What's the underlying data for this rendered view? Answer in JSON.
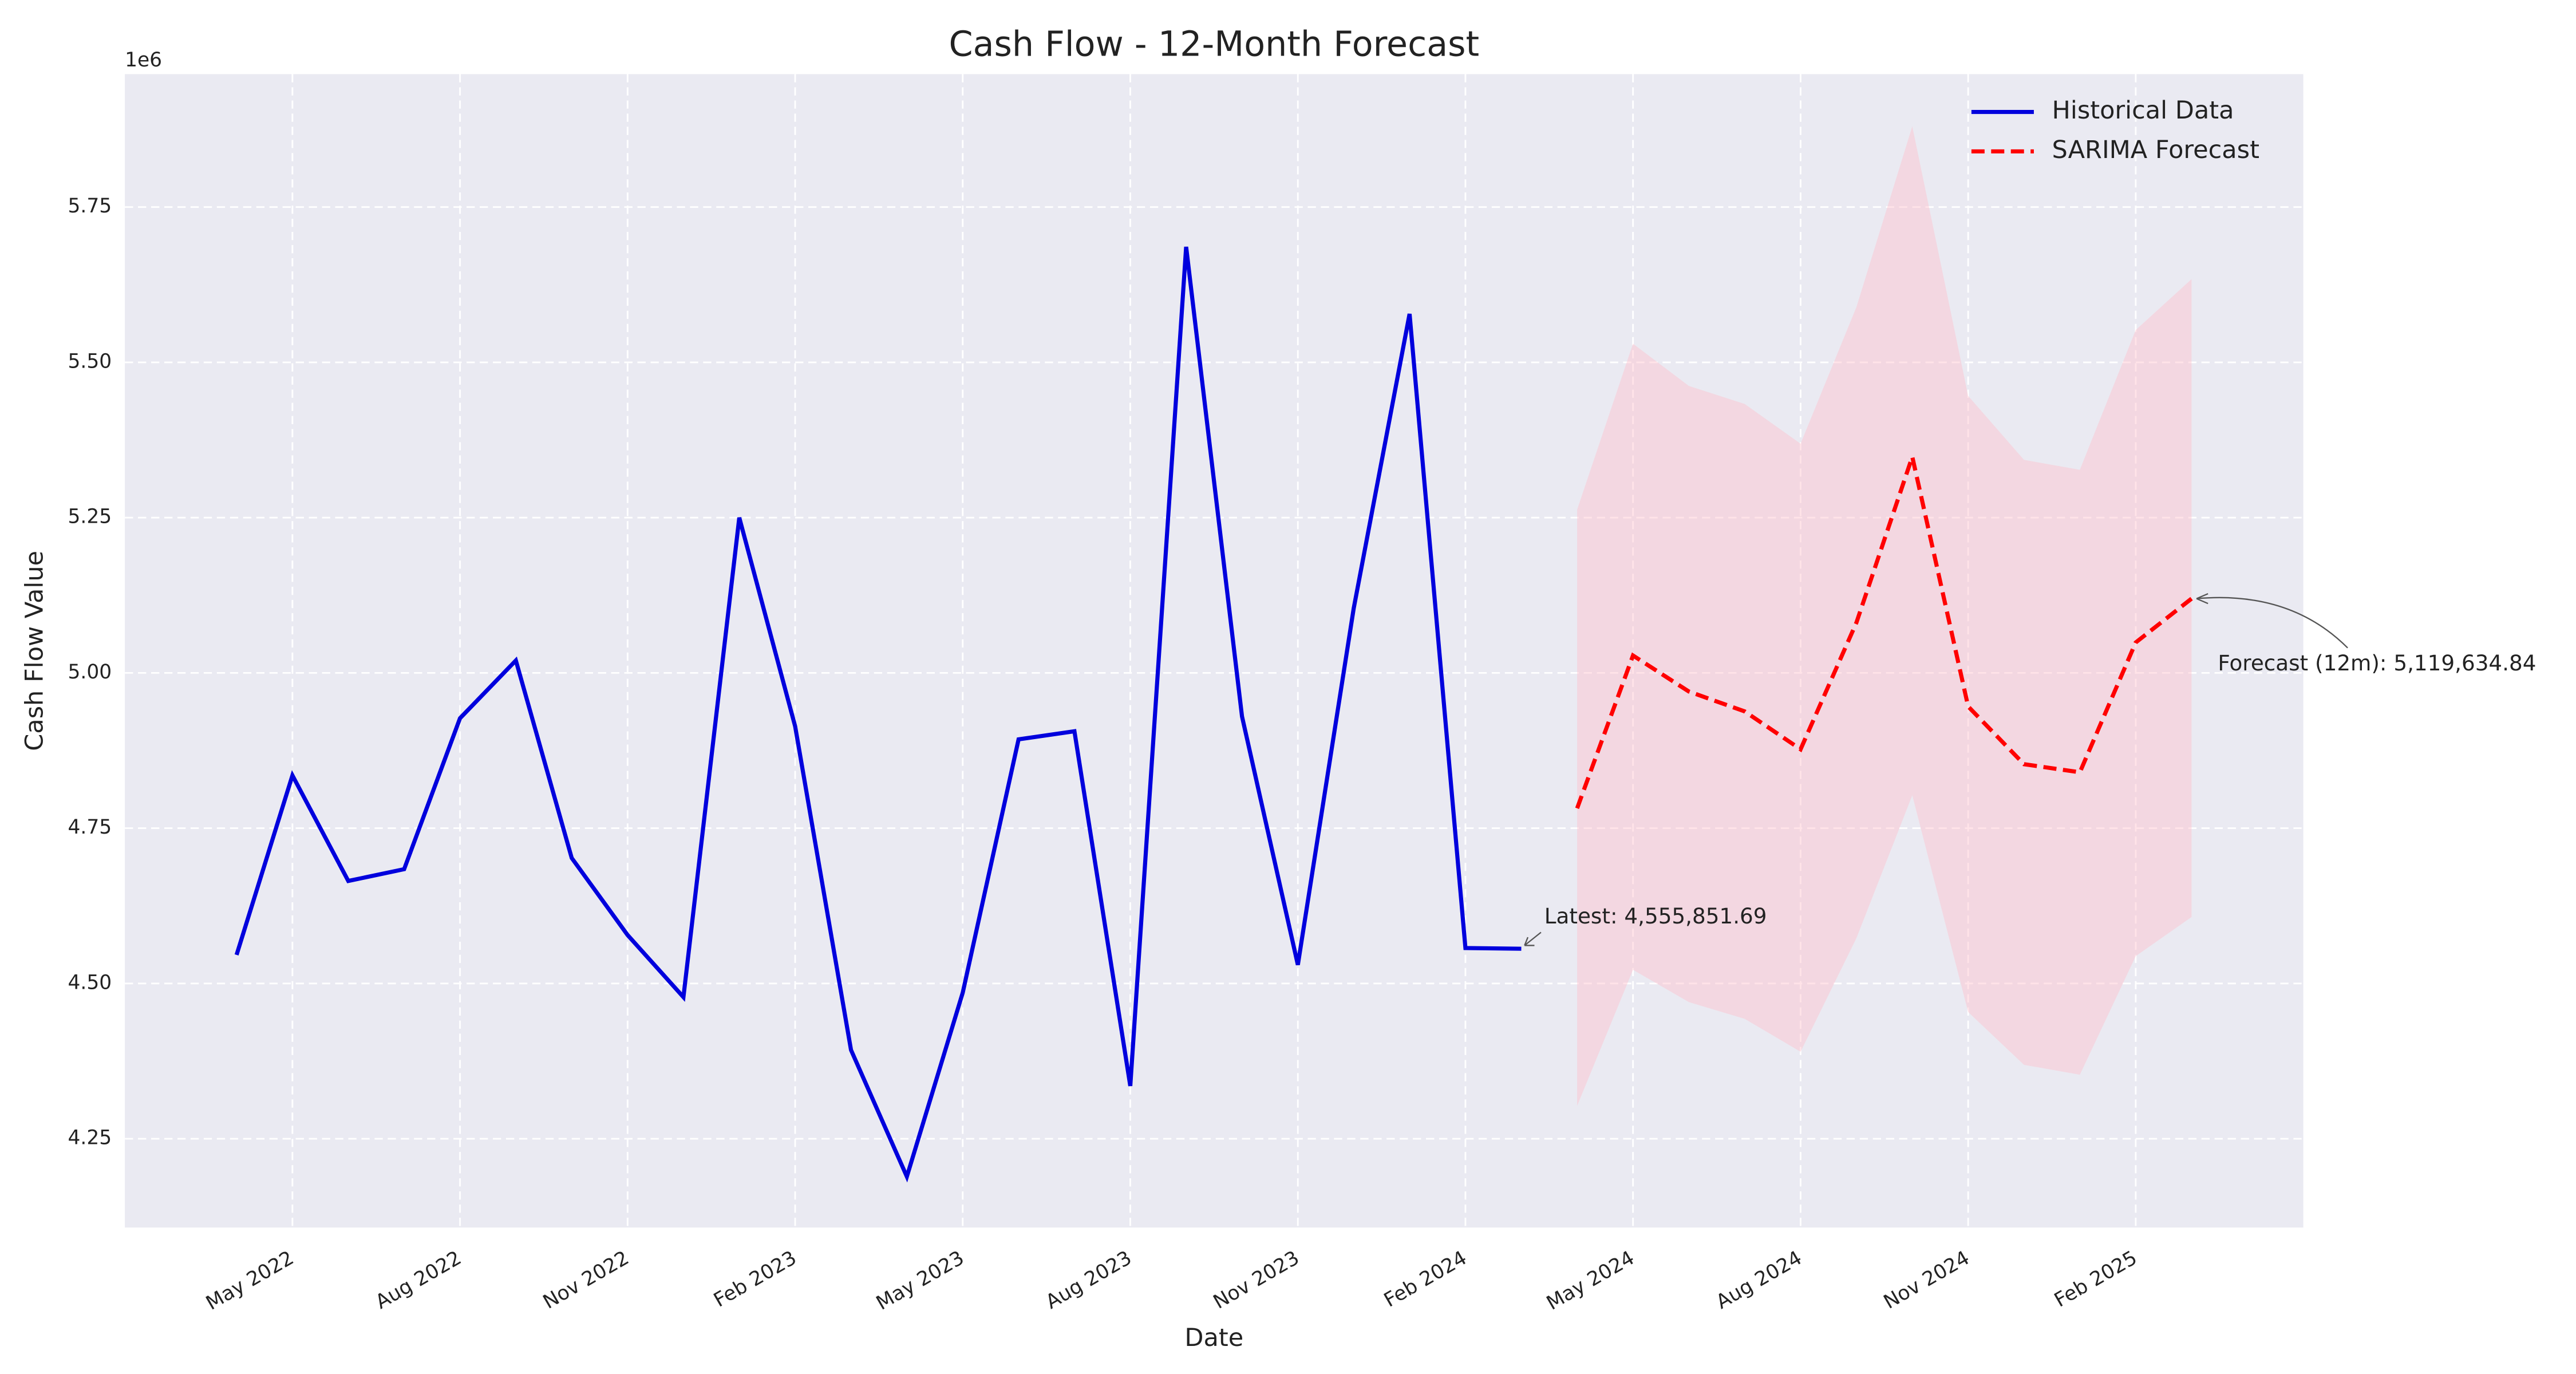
{
  "chart_data": {
    "type": "line",
    "title": "Cash Flow - 12-Month Forecast",
    "x_label": "Date",
    "y_label": "Cash Flow Value",
    "y_offset_label": "1e6",
    "grid": true,
    "background": "#eaeaf2",
    "legend_position": "upper right",
    "xlim": [
      "2022-02",
      "2025-05"
    ],
    "xticks": [
      {
        "value": "2022-05",
        "label": "May 2022"
      },
      {
        "value": "2022-08",
        "label": "Aug 2022"
      },
      {
        "value": "2022-11",
        "label": "Nov 2022"
      },
      {
        "value": "2023-02",
        "label": "Feb 2023"
      },
      {
        "value": "2023-05",
        "label": "May 2023"
      },
      {
        "value": "2023-08",
        "label": "Aug 2023"
      },
      {
        "value": "2023-11",
        "label": "Nov 2023"
      },
      {
        "value": "2024-02",
        "label": "Feb 2024"
      },
      {
        "value": "2024-05",
        "label": "May 2024"
      },
      {
        "value": "2024-08",
        "label": "Aug 2024"
      },
      {
        "value": "2024-11",
        "label": "Nov 2024"
      },
      {
        "value": "2025-02",
        "label": "Feb 2025"
      }
    ],
    "ylim": [
      4.107,
      5.964
    ],
    "yticks": [
      4.25,
      {
        "value": 4.5,
        "label": "4.50"
      },
      4.75,
      {
        "value": 5,
        "label": "5.00"
      },
      5.25,
      {
        "value": 5.5,
        "label": "5.50"
      },
      5.75
    ],
    "series": [
      {
        "name": "Historical Data",
        "color": "#0000dd",
        "dashed": false,
        "x": [
          "2022-04",
          "2022-05",
          "2022-06",
          "2022-07",
          "2022-08",
          "2022-09",
          "2022-10",
          "2022-11",
          "2022-12",
          "2023-01",
          "2023-02",
          "2023-03",
          "2023-04",
          "2023-05",
          "2023-06",
          "2023-07",
          "2023-08",
          "2023-09",
          "2023-10",
          "2023-11",
          "2023-12",
          "2024-01",
          "2024-02",
          "2024-03"
        ],
        "values": [
          4.546,
          4.835,
          4.665,
          4.684,
          4.927,
          5.02,
          4.702,
          4.578,
          4.478,
          5.25,
          4.914,
          4.393,
          4.189,
          4.485,
          4.893,
          4.906,
          4.335,
          5.686,
          4.93,
          4.53,
          5.104,
          5.578,
          4.557,
          4.5559
        ]
      },
      {
        "name": "SARIMA Forecast",
        "color": "#ff0000",
        "dashed": true,
        "x": [
          "2024-04",
          "2024-05",
          "2024-06",
          "2024-07",
          "2024-08",
          "2024-09",
          "2024-10",
          "2024-11",
          "2024-12",
          "2025-01",
          "2025-02",
          "2025-03"
        ],
        "values": [
          4.782,
          5.028,
          4.97,
          4.938,
          4.877,
          5.081,
          5.348,
          4.946,
          4.853,
          4.84,
          5.049,
          5.1196
        ]
      }
    ],
    "confidence_band": {
      "color": "#ffc0cb",
      "lower": [
        4.303,
        4.522,
        4.47,
        4.443,
        4.39,
        4.573,
        4.803,
        4.454,
        4.369,
        4.353,
        4.544,
        4.607
      ],
      "upper": [
        5.263,
        5.53,
        5.462,
        5.433,
        5.369,
        5.589,
        5.88,
        5.446,
        5.343,
        5.327,
        5.552,
        5.634
      ]
    },
    "annotations": [
      {
        "text": "Latest: 4,555,851.69"
      },
      {
        "text": "Forecast (12m): 5,119,634.84"
      }
    ]
  }
}
